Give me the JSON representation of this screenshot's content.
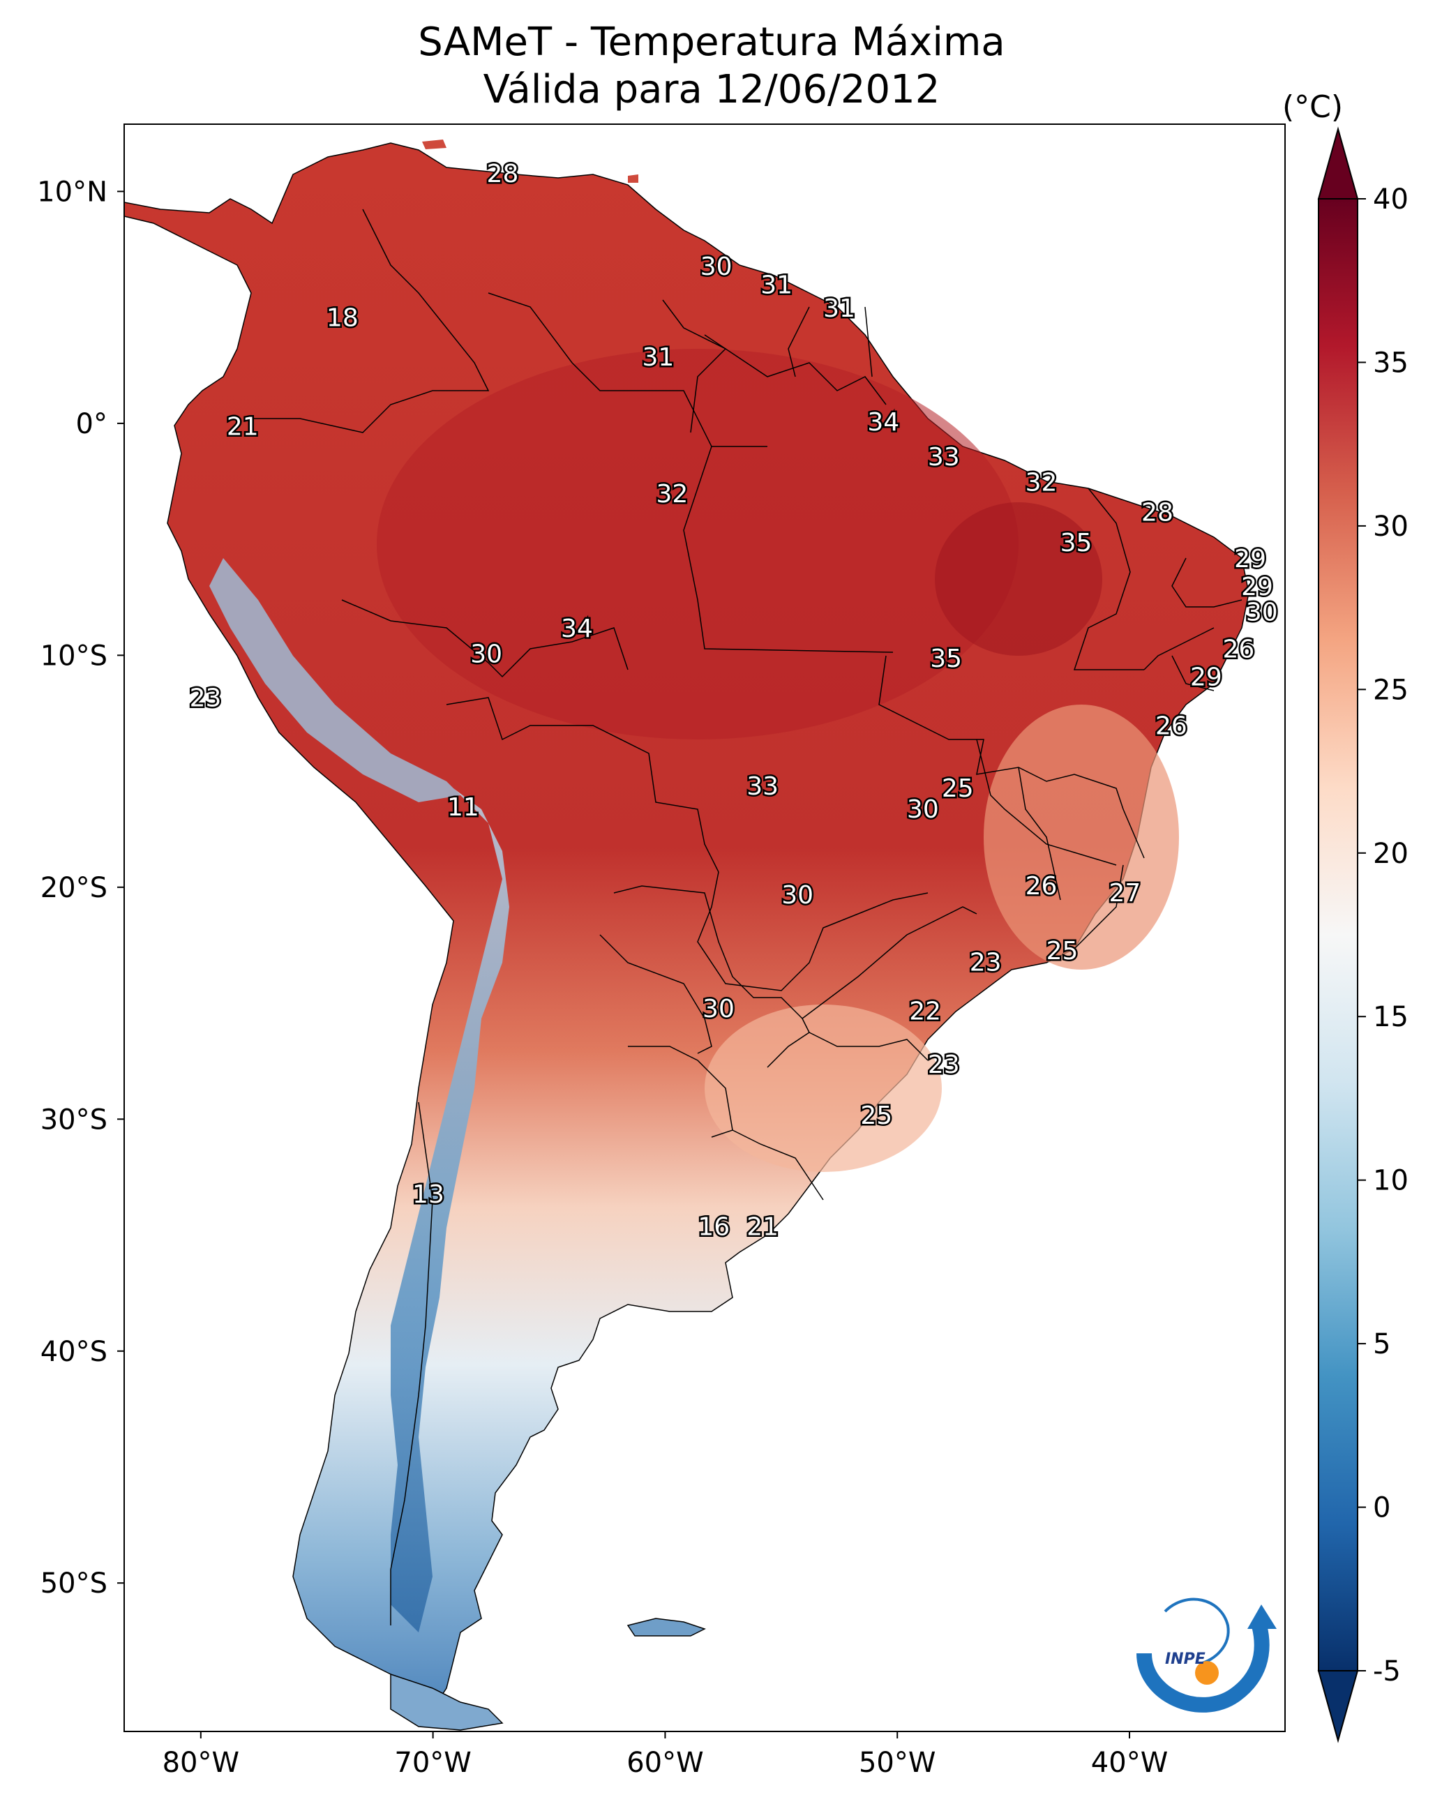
{
  "title": {
    "line1": "SAMeT - Temperatura Máxima",
    "line2": "Válida para 12/06/2012"
  },
  "colorbar": {
    "unit": "(°C)",
    "ticks": [
      "40",
      "35",
      "30",
      "25",
      "20",
      "15",
      "10",
      "5",
      "0",
      "-5"
    ],
    "min": -5,
    "max": 40,
    "colors": [
      "#08306b",
      "#2166ac",
      "#4393c3",
      "#92c5de",
      "#d1e5f0",
      "#f7f7f7",
      "#fddbc7",
      "#f4a582",
      "#d6604d",
      "#b2182b",
      "#67001f"
    ]
  },
  "axes": {
    "lat_ticks": [
      "10°N",
      "0°",
      "10°S",
      "20°S",
      "30°S",
      "40°S",
      "50°S"
    ],
    "lon_ticks": [
      "80°W",
      "70°W",
      "60°W",
      "50°W",
      "40°W"
    ]
  },
  "logo": {
    "text": "INPE"
  },
  "labels": [
    {
      "t": "28",
      "lon": -67.0,
      "lat": 10.7
    },
    {
      "t": "30",
      "lon": -57.8,
      "lat": 6.7
    },
    {
      "t": "31",
      "lon": -55.2,
      "lat": 5.9
    },
    {
      "t": "31",
      "lon": -52.5,
      "lat": 4.9
    },
    {
      "t": "18",
      "lon": -73.9,
      "lat": 4.5
    },
    {
      "t": "31",
      "lon": -60.3,
      "lat": 2.8
    },
    {
      "t": "21",
      "lon": -78.2,
      "lat": -0.2
    },
    {
      "t": "34",
      "lon": -50.6,
      "lat": 0.0
    },
    {
      "t": "33",
      "lon": -48.0,
      "lat": -1.5
    },
    {
      "t": "32",
      "lon": -59.7,
      "lat": -3.1
    },
    {
      "t": "32",
      "lon": -43.8,
      "lat": -2.6
    },
    {
      "t": "28",
      "lon": -38.8,
      "lat": -3.9
    },
    {
      "t": "35",
      "lon": -42.3,
      "lat": -5.2
    },
    {
      "t": "29",
      "lon": -34.8,
      "lat": -5.9
    },
    {
      "t": "29",
      "lon": -34.5,
      "lat": -7.1
    },
    {
      "t": "30",
      "lon": -34.3,
      "lat": -8.2
    },
    {
      "t": "34",
      "lon": -63.8,
      "lat": -8.9
    },
    {
      "t": "26",
      "lon": -35.3,
      "lat": -9.8
    },
    {
      "t": "30",
      "lon": -67.7,
      "lat": -10.0
    },
    {
      "t": "35",
      "lon": -47.9,
      "lat": -10.2
    },
    {
      "t": "29",
      "lon": -36.7,
      "lat": -11.0
    },
    {
      "t": "23",
      "lon": -79.8,
      "lat": -11.9
    },
    {
      "t": "26",
      "lon": -38.2,
      "lat": -13.1
    },
    {
      "t": "25",
      "lon": -47.4,
      "lat": -15.8
    },
    {
      "t": "33",
      "lon": -55.8,
      "lat": -15.7
    },
    {
      "t": "30",
      "lon": -48.9,
      "lat": -16.7
    },
    {
      "t": "11",
      "lon": -68.7,
      "lat": -16.6
    },
    {
      "t": "26",
      "lon": -43.8,
      "lat": -20.0
    },
    {
      "t": "27",
      "lon": -40.2,
      "lat": -20.3
    },
    {
      "t": "30",
      "lon": -54.3,
      "lat": -20.4
    },
    {
      "t": "25",
      "lon": -42.9,
      "lat": -22.8
    },
    {
      "t": "23",
      "lon": -46.2,
      "lat": -23.3
    },
    {
      "t": "22",
      "lon": -48.8,
      "lat": -25.4
    },
    {
      "t": "30",
      "lon": -57.7,
      "lat": -25.3
    },
    {
      "t": "23",
      "lon": -48.0,
      "lat": -27.7
    },
    {
      "t": "25",
      "lon": -50.9,
      "lat": -29.9
    },
    {
      "t": "13",
      "lon": -70.2,
      "lat": -33.3
    },
    {
      "t": "16",
      "lon": -57.9,
      "lat": -34.7
    },
    {
      "t": "21",
      "lon": -55.8,
      "lat": -34.7
    }
  ]
}
